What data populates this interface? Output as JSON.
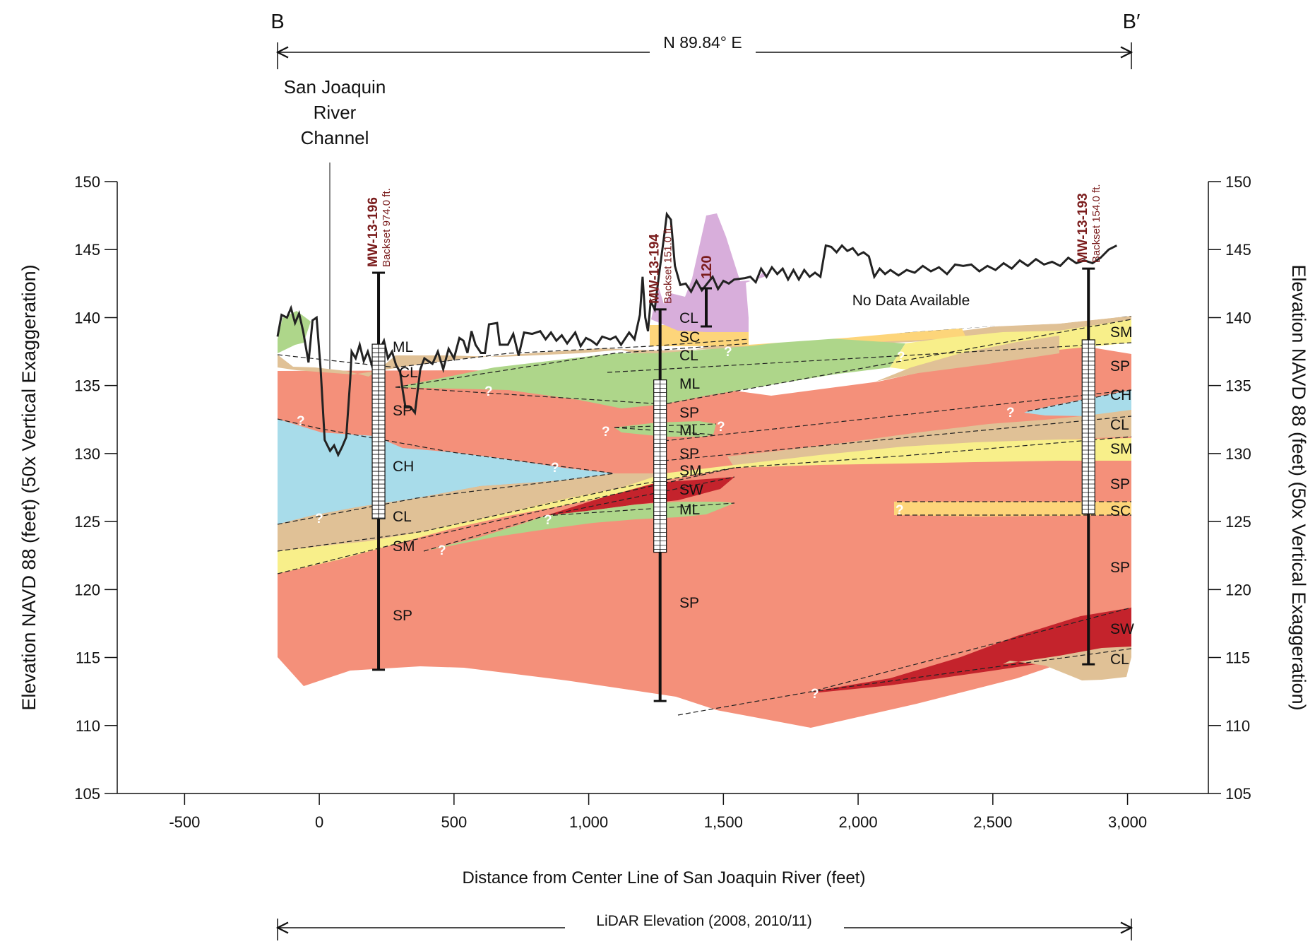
{
  "header": {
    "left_label": "B",
    "right_label": "B′",
    "bearing": "N 89.84° E"
  },
  "channel_label": [
    "San Joaquin",
    "River",
    "Channel"
  ],
  "no_data_label": "No Data Available",
  "elevation_marker": "120",
  "footer": {
    "lidar_label": "LiDAR Elevation (2008, 2010/11)"
  },
  "colors": {
    "SP": "#f4907a",
    "CH": "#a8dcea",
    "CL": "#e0c196",
    "ML": "#aed68a",
    "SM": "#f8ef8a",
    "SC": "#fdd57a",
    "SW": "#c4232c",
    "fill": "#d8aedb",
    "ground": "#222222"
  },
  "wells": [
    {
      "id": "MW-13-196",
      "backset": "Backset 974.0 ft."
    },
    {
      "id": "MW-13-194",
      "backset": "Backset 151.0 ft."
    },
    {
      "id": "MW-13-193",
      "backset": "Backset 154.0 ft."
    }
  ],
  "unit_labels_196": [
    "ML",
    "CL",
    "SP",
    "CH",
    "CL",
    "SM",
    "SP"
  ],
  "unit_labels_194": [
    "CL",
    "SC",
    "CL",
    "ML",
    "SP",
    "ML",
    "SP",
    "SM",
    "SW",
    "ML",
    "SP"
  ],
  "unit_labels_193": [
    "SM",
    "SP",
    "CH",
    "CL",
    "SM",
    "SP",
    "SC",
    "SP",
    "SW",
    "CL"
  ],
  "chart_data": {
    "type": "cross-section",
    "xlabel": "Distance from Center Line of San Joaquin River (feet)",
    "ylabel_left": "Elevation NAVD 88 (feet) (50x Vertical Exaggeration)",
    "ylabel_right": "Elevation NAVD 88 (feet) (50x Vertical Exaggeration)",
    "x_ticks": [
      "-500",
      "0",
      "500",
      "1,000",
      "1,500",
      "2,000",
      "2,500",
      "3,000"
    ],
    "y_ticks": [
      "105",
      "110",
      "115",
      "120",
      "125",
      "130",
      "135",
      "140",
      "145",
      "150"
    ],
    "xlim": [
      -750,
      3300
    ],
    "ylim": [
      105,
      150
    ],
    "well_logs": [
      {
        "name": "MW-13-196",
        "x": 220,
        "top": 143.3,
        "bottom": 114.1
      },
      {
        "name": "MW-13-194",
        "x": 1265,
        "top": 140.6,
        "bottom": 111.8
      },
      {
        "name": "MW-13-193",
        "x": 2855,
        "top": 143.6,
        "bottom": 114.5
      }
    ],
    "ground_surface": [
      [
        -155,
        138.6
      ],
      [
        -140,
        140.2
      ],
      [
        -120,
        140.0
      ],
      [
        -105,
        140.7
      ],
      [
        -90,
        139.6
      ],
      [
        -75,
        140.3
      ],
      [
        -60,
        139.0
      ],
      [
        -40,
        136.7
      ],
      [
        -25,
        139.8
      ],
      [
        -10,
        140.0
      ],
      [
        5,
        136.2
      ],
      [
        20,
        131.0
      ],
      [
        40,
        130.2
      ],
      [
        55,
        130.6
      ],
      [
        70,
        129.9
      ],
      [
        85,
        130.5
      ],
      [
        100,
        131.2
      ],
      [
        115,
        135.5
      ],
      [
        120,
        137.5
      ],
      [
        135,
        137.0
      ],
      [
        150,
        138.0
      ],
      [
        165,
        136.8
      ],
      [
        180,
        137.5
      ],
      [
        195,
        136.5
      ],
      [
        210,
        137.6
      ],
      [
        225,
        137.7
      ],
      [
        240,
        138.3
      ],
      [
        255,
        137.0
      ],
      [
        270,
        137.5
      ],
      [
        285,
        136.5
      ],
      [
        300,
        136.0
      ],
      [
        310,
        134.6
      ],
      [
        320,
        133.4
      ],
      [
        340,
        133.4
      ],
      [
        355,
        133.0
      ],
      [
        375,
        136.2
      ],
      [
        390,
        137.0
      ],
      [
        420,
        136.6
      ],
      [
        440,
        137.5
      ],
      [
        460,
        136.2
      ],
      [
        480,
        137.7
      ],
      [
        500,
        137.0
      ],
      [
        520,
        138.5
      ],
      [
        535,
        138.3
      ],
      [
        550,
        137.4
      ],
      [
        565,
        139.0
      ],
      [
        580,
        138.0
      ],
      [
        600,
        137.4
      ],
      [
        615,
        137.4
      ],
      [
        630,
        139.5
      ],
      [
        660,
        139.6
      ],
      [
        670,
        138.0
      ],
      [
        700,
        138.0
      ],
      [
        720,
        138.8
      ],
      [
        740,
        137.2
      ],
      [
        760,
        138.9
      ],
      [
        790,
        138.8
      ],
      [
        820,
        139.0
      ],
      [
        840,
        138.4
      ],
      [
        860,
        138.9
      ],
      [
        880,
        138.3
      ],
      [
        900,
        138.7
      ],
      [
        920,
        138.1
      ],
      [
        950,
        138.9
      ],
      [
        970,
        137.9
      ],
      [
        990,
        138.5
      ],
      [
        1010,
        138.3
      ],
      [
        1030,
        138.0
      ],
      [
        1050,
        138.6
      ],
      [
        1080,
        138.4
      ],
      [
        1100,
        138.6
      ],
      [
        1120,
        138.0
      ],
      [
        1150,
        138.9
      ],
      [
        1170,
        138.4
      ],
      [
        1190,
        140.2
      ],
      [
        1200,
        143.0
      ],
      [
        1210,
        140.0
      ],
      [
        1220,
        139.0
      ],
      [
        1230,
        141.2
      ],
      [
        1245,
        140.6
      ],
      [
        1260,
        143.0
      ],
      [
        1280,
        146.0
      ],
      [
        1290,
        147.6
      ],
      [
        1305,
        147.2
      ],
      [
        1320,
        143.8
      ],
      [
        1340,
        142.4
      ],
      [
        1360,
        142.5
      ],
      [
        1380,
        141.9
      ],
      [
        1400,
        142.7
      ],
      [
        1420,
        142.0
      ],
      [
        1440,
        142.5
      ],
      [
        1460,
        143.0
      ],
      [
        1480,
        142.1
      ],
      [
        1500,
        142.7
      ],
      [
        1520,
        142.5
      ],
      [
        1540,
        142.8
      ],
      [
        1580,
        142.9
      ],
      [
        1600,
        143.0
      ],
      [
        1620,
        142.6
      ],
      [
        1640,
        143.6
      ],
      [
        1660,
        143.0
      ],
      [
        1680,
        143.7
      ],
      [
        1700,
        143.2
      ],
      [
        1720,
        143.6
      ],
      [
        1740,
        142.8
      ],
      [
        1760,
        143.5
      ],
      [
        1780,
        142.8
      ],
      [
        1800,
        143.5
      ],
      [
        1820,
        143.0
      ],
      [
        1840,
        143.3
      ],
      [
        1860,
        143.0
      ],
      [
        1880,
        145.3
      ],
      [
        1900,
        145.2
      ],
      [
        1920,
        144.8
      ],
      [
        1940,
        145.3
      ],
      [
        1960,
        144.9
      ],
      [
        1980,
        145.1
      ],
      [
        2000,
        144.6
      ],
      [
        2020,
        144.8
      ],
      [
        2040,
        144.5
      ],
      [
        2060,
        143.0
      ],
      [
        2080,
        143.6
      ],
      [
        2100,
        143.2
      ],
      [
        2120,
        143.5
      ],
      [
        2150,
        143.1
      ],
      [
        2180,
        143.5
      ],
      [
        2210,
        143.3
      ],
      [
        2240,
        143.8
      ],
      [
        2270,
        143.4
      ],
      [
        2300,
        143.7
      ],
      [
        2330,
        143.2
      ],
      [
        2360,
        143.9
      ],
      [
        2390,
        143.8
      ],
      [
        2420,
        143.9
      ],
      [
        2450,
        143.4
      ],
      [
        2480,
        143.8
      ],
      [
        2510,
        143.5
      ],
      [
        2540,
        144.0
      ],
      [
        2570,
        143.6
      ],
      [
        2600,
        144.2
      ],
      [
        2630,
        143.8
      ],
      [
        2660,
        144.3
      ],
      [
        2690,
        143.9
      ],
      [
        2720,
        144.1
      ],
      [
        2750,
        143.8
      ],
      [
        2780,
        144.4
      ],
      [
        2810,
        144.0
      ],
      [
        2840,
        144.2
      ],
      [
        2870,
        144.0
      ],
      [
        2900,
        144.4
      ],
      [
        2930,
        145.0
      ],
      [
        2960,
        145.3
      ]
    ]
  }
}
